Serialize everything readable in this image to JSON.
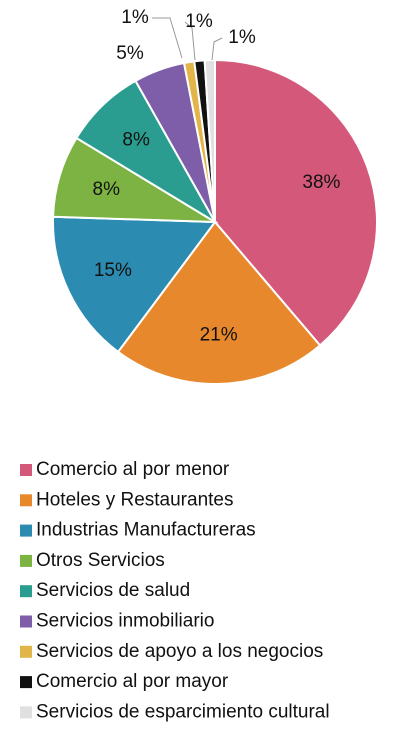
{
  "chart_data": {
    "type": "pie",
    "categories": [
      "Comercio al por menor",
      "Hoteles y Restaurantes",
      "Industrias Manufactureras",
      "Otros Servicios",
      "Servicios de salud",
      "Servicios inmobiliario",
      "Servicios de apoyo a los negocios",
      "Comercio al por mayor",
      "Servicios de esparcimiento cultural"
    ],
    "values": [
      38,
      21,
      15,
      8,
      8,
      5,
      1,
      1,
      1
    ],
    "value_labels": [
      "38%",
      "21%",
      "15%",
      "8%",
      "8%",
      "5%",
      "1%",
      "1%",
      "1%"
    ],
    "colors": [
      "#d4587a",
      "#e8882c",
      "#2b8bb0",
      "#7cb342",
      "#2a9d90",
      "#7e5ea8",
      "#e2b54a",
      "#111111",
      "#e0e0e0"
    ]
  }
}
